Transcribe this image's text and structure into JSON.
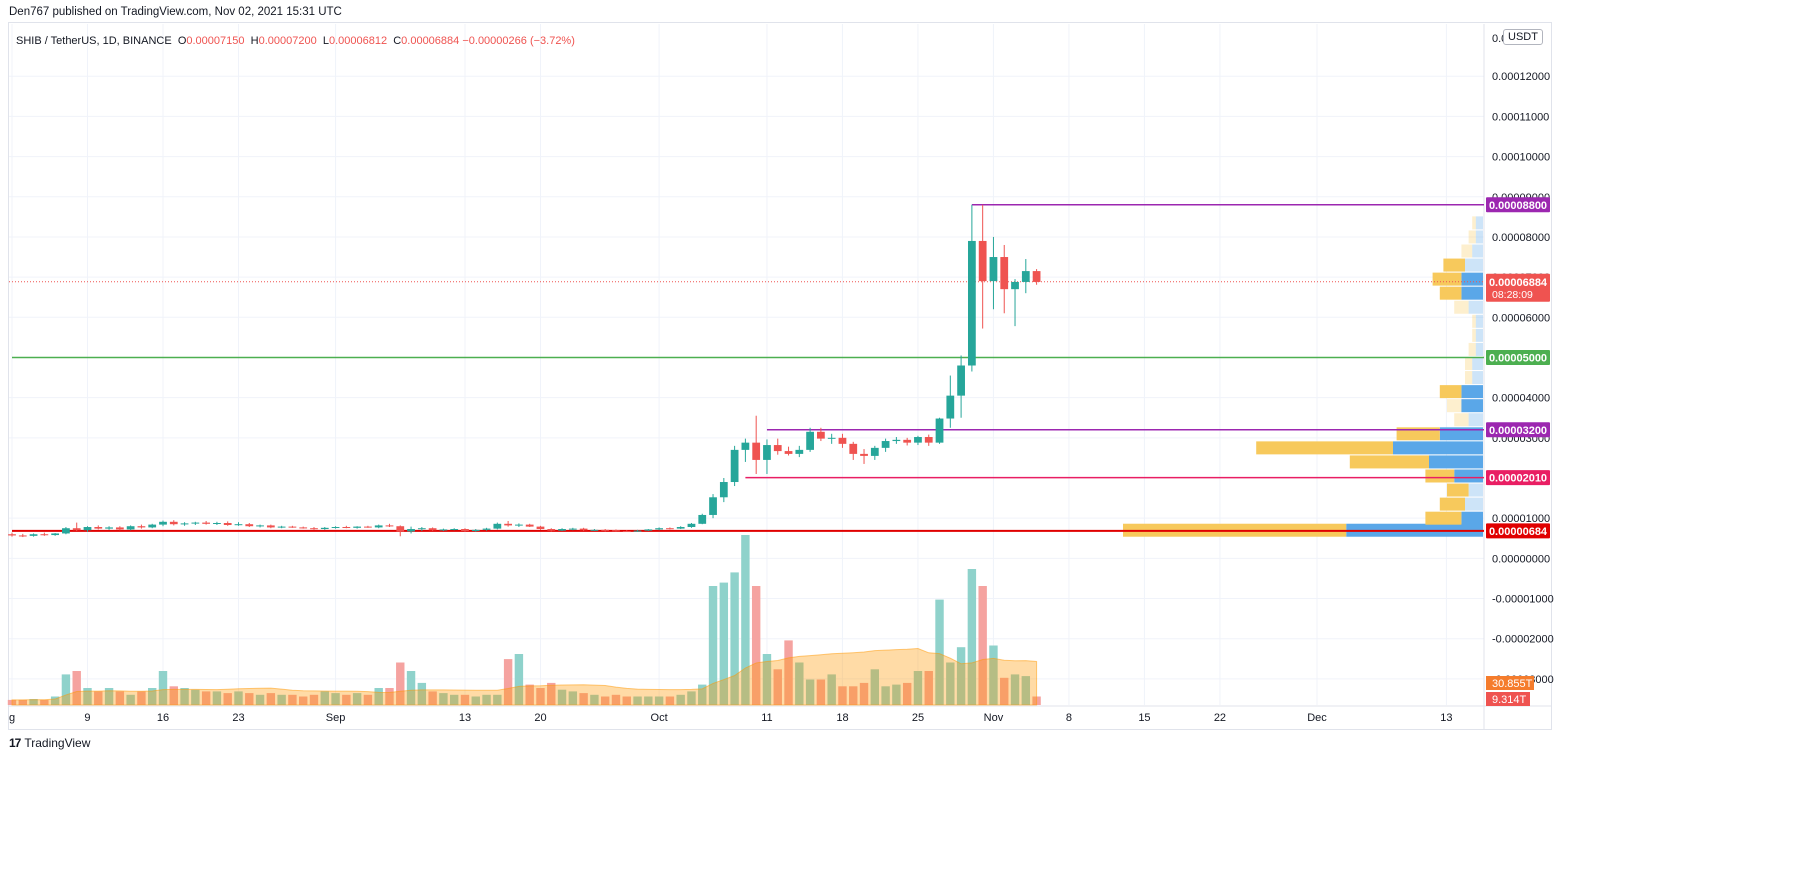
{
  "publish_line": "Den767 published on TradingView.com, Nov 02, 2021 15:31 UTC",
  "legend": {
    "symbol": "SHIB / TetherUS, 1D, BINANCE",
    "open_label": "O",
    "open": "0.00007150",
    "high_label": "H",
    "high": "0.00007200",
    "low_label": "L",
    "low": "0.00006812",
    "close_label": "C",
    "close": "0.00006884",
    "change": "−0.00000266 (−3.72%)"
  },
  "currency_badge": "USDT",
  "footer": {
    "logo": "17",
    "brand": "TradingView"
  },
  "colors": {
    "up": "#26a69a",
    "down": "#ef5350",
    "up_vol": "#8fd2cb",
    "down_vol": "#f5a3a0",
    "resistance": "#9c27b0",
    "support_green": "#4caf50",
    "support_red": "#e91e63",
    "current_red": "#e00000",
    "vp_yellow": "#f7c95c",
    "vp_blue": "#5aa7e8"
  },
  "chart_data": {
    "type": "candlestick",
    "price_axis": {
      "ylim": [
        -3.65e-05,
        0.000133
      ],
      "ticks": [
        "0.00012000",
        "0.00011000",
        "0.00010000",
        "0.00009000",
        "0.00008000",
        "0.00007000",
        "0.00006000",
        "0.00004000",
        "0.00003000",
        "0.00001000",
        "0.00000000",
        "-0.00001000",
        "-0.00002000",
        "-0.00003000"
      ],
      "tick_values": [
        0.00012,
        0.00011,
        0.0001,
        9e-05,
        8e-05,
        7e-05,
        6e-05,
        4e-05,
        3e-05,
        1e-05,
        0,
        -1e-05,
        -2e-05,
        -3e-05
      ],
      "top_partial_label": "0.0"
    },
    "time_axis": {
      "labels": [
        "g",
        "9",
        "16",
        "23",
        "Sep",
        "13",
        "20",
        "Oct",
        "11",
        "18",
        "25",
        "Nov",
        "8",
        "15",
        "22",
        "Dec",
        "13"
      ],
      "label_dates": [
        "2021-08-02",
        "2021-08-09",
        "2021-08-16",
        "2021-08-23",
        "2021-09-01",
        "2021-09-13",
        "2021-09-20",
        "2021-10-01",
        "2021-10-11",
        "2021-10-18",
        "2021-10-25",
        "2021-11-01",
        "2021-11-08",
        "2021-11-15",
        "2021-11-22",
        "2021-12-01",
        "2021-12-13"
      ],
      "xlim": [
        "2021-08-02",
        "2021-12-15"
      ]
    },
    "candles": [
      {
        "date": "2021-08-02",
        "o": 6e-06,
        "h": 6.4e-06,
        "l": 5.4e-06,
        "c": 5.7e-06
      },
      {
        "date": "2021-08-03",
        "o": 5.7e-06,
        "h": 6.1e-06,
        "l": 5.3e-06,
        "c": 5.6e-06
      },
      {
        "date": "2021-08-04",
        "o": 5.6e-06,
        "h": 6.2e-06,
        "l": 5.4e-06,
        "c": 6e-06
      },
      {
        "date": "2021-08-05",
        "o": 6e-06,
        "h": 6.4e-06,
        "l": 5.6e-06,
        "c": 5.8e-06
      },
      {
        "date": "2021-08-06",
        "o": 5.8e-06,
        "h": 6.3e-06,
        "l": 5.6e-06,
        "c": 6.2e-06
      },
      {
        "date": "2021-08-07",
        "o": 6.2e-06,
        "h": 7.8e-06,
        "l": 6e-06,
        "c": 7.5e-06
      },
      {
        "date": "2021-08-08",
        "o": 7.5e-06,
        "h": 8.9e-06,
        "l": 6.8e-06,
        "c": 7e-06
      },
      {
        "date": "2021-08-09",
        "o": 7e-06,
        "h": 8e-06,
        "l": 6.6e-06,
        "c": 7.8e-06
      },
      {
        "date": "2021-08-10",
        "o": 7.8e-06,
        "h": 8.2e-06,
        "l": 7.2e-06,
        "c": 7.4e-06
      },
      {
        "date": "2021-08-11",
        "o": 7.4e-06,
        "h": 8e-06,
        "l": 7.1e-06,
        "c": 7.7e-06
      },
      {
        "date": "2021-08-12",
        "o": 7.7e-06,
        "h": 8e-06,
        "l": 7e-06,
        "c": 7.2e-06
      },
      {
        "date": "2021-08-13",
        "o": 7.2e-06,
        "h": 8.2e-06,
        "l": 7e-06,
        "c": 8e-06
      },
      {
        "date": "2021-08-14",
        "o": 8e-06,
        "h": 8.4e-06,
        "l": 7.4e-06,
        "c": 7.7e-06
      },
      {
        "date": "2021-08-15",
        "o": 7.7e-06,
        "h": 8.6e-06,
        "l": 7.5e-06,
        "c": 8.4e-06
      },
      {
        "date": "2021-08-16",
        "o": 8.4e-06,
        "h": 9.4e-06,
        "l": 8e-06,
        "c": 9.1e-06
      },
      {
        "date": "2021-08-17",
        "o": 9.1e-06,
        "h": 9.5e-06,
        "l": 8.2e-06,
        "c": 8.5e-06
      },
      {
        "date": "2021-08-18",
        "o": 8.5e-06,
        "h": 9e-06,
        "l": 8.1e-06,
        "c": 8.7e-06
      },
      {
        "date": "2021-08-19",
        "o": 8.7e-06,
        "h": 9.1e-06,
        "l": 8.3e-06,
        "c": 8.9e-06
      },
      {
        "date": "2021-08-20",
        "o": 8.9e-06,
        "h": 9.3e-06,
        "l": 8.4e-06,
        "c": 8.6e-06
      },
      {
        "date": "2021-08-21",
        "o": 8.6e-06,
        "h": 9.1e-06,
        "l": 8.3e-06,
        "c": 8.8e-06
      },
      {
        "date": "2021-08-22",
        "o": 8.8e-06,
        "h": 9.2e-06,
        "l": 8.1e-06,
        "c": 8.3e-06
      },
      {
        "date": "2021-08-23",
        "o": 8.3e-06,
        "h": 9e-06,
        "l": 8.1e-06,
        "c": 8.5e-06
      },
      {
        "date": "2021-08-24",
        "o": 8.5e-06,
        "h": 8.8e-06,
        "l": 7.8e-06,
        "c": 8e-06
      },
      {
        "date": "2021-08-25",
        "o": 8e-06,
        "h": 8.4e-06,
        "l": 7.7e-06,
        "c": 8.2e-06
      },
      {
        "date": "2021-08-26",
        "o": 8.2e-06,
        "h": 8.4e-06,
        "l": 7.5e-06,
        "c": 7.7e-06
      },
      {
        "date": "2021-08-27",
        "o": 7.7e-06,
        "h": 8.1e-06,
        "l": 7.5e-06,
        "c": 7.9e-06
      },
      {
        "date": "2021-08-28",
        "o": 7.9e-06,
        "h": 8.1e-06,
        "l": 7.6e-06,
        "c": 7.7e-06
      },
      {
        "date": "2021-08-29",
        "o": 7.7e-06,
        "h": 7.9e-06,
        "l": 7.4e-06,
        "c": 7.5e-06
      },
      {
        "date": "2021-08-30",
        "o": 7.5e-06,
        "h": 7.8e-06,
        "l": 7.1e-06,
        "c": 7.3e-06
      },
      {
        "date": "2021-08-31",
        "o": 7.3e-06,
        "h": 7.8e-06,
        "l": 7.1e-06,
        "c": 7.6e-06
      },
      {
        "date": "2021-09-01",
        "o": 7.6e-06,
        "h": 8e-06,
        "l": 7.4e-06,
        "c": 7.8e-06
      },
      {
        "date": "2021-09-02",
        "o": 7.8e-06,
        "h": 8.1e-06,
        "l": 7.5e-06,
        "c": 7.6e-06
      },
      {
        "date": "2021-09-03",
        "o": 7.6e-06,
        "h": 8e-06,
        "l": 7.4e-06,
        "c": 7.9e-06
      },
      {
        "date": "2021-09-04",
        "o": 7.9e-06,
        "h": 8.1e-06,
        "l": 7.6e-06,
        "c": 7.7e-06
      },
      {
        "date": "2021-09-05",
        "o": 7.7e-06,
        "h": 8.4e-06,
        "l": 7.5e-06,
        "c": 8.2e-06
      },
      {
        "date": "2021-09-06",
        "o": 8.2e-06,
        "h": 8.6e-06,
        "l": 7.8e-06,
        "c": 8e-06
      },
      {
        "date": "2021-09-07",
        "o": 8e-06,
        "h": 8.2e-06,
        "l": 5.5e-06,
        "c": 6.7e-06
      },
      {
        "date": "2021-09-08",
        "o": 6.7e-06,
        "h": 7.9e-06,
        "l": 6.2e-06,
        "c": 7.3e-06
      },
      {
        "date": "2021-09-09",
        "o": 7.3e-06,
        "h": 7.8e-06,
        "l": 6.8e-06,
        "c": 7.5e-06
      },
      {
        "date": "2021-09-10",
        "o": 7.5e-06,
        "h": 7.7e-06,
        "l": 6.8e-06,
        "c": 7e-06
      },
      {
        "date": "2021-09-11",
        "o": 7e-06,
        "h": 7.4e-06,
        "l": 6.8e-06,
        "c": 7.2e-06
      },
      {
        "date": "2021-09-12",
        "o": 7.2e-06,
        "h": 7.5e-06,
        "l": 7e-06,
        "c": 7.3e-06
      },
      {
        "date": "2021-09-13",
        "o": 7.3e-06,
        "h": 7.5e-06,
        "l": 6.6e-06,
        "c": 6.8e-06
      },
      {
        "date": "2021-09-14",
        "o": 6.8e-06,
        "h": 7.3e-06,
        "l": 6.6e-06,
        "c": 7.1e-06
      },
      {
        "date": "2021-09-15",
        "o": 7.1e-06,
        "h": 7.6e-06,
        "l": 6.9e-06,
        "c": 7.4e-06
      },
      {
        "date": "2021-09-16",
        "o": 7.4e-06,
        "h": 8.9e-06,
        "l": 7.2e-06,
        "c": 8.6e-06
      },
      {
        "date": "2021-09-17",
        "o": 8.6e-06,
        "h": 9.3e-06,
        "l": 7.9e-06,
        "c": 8.2e-06
      },
      {
        "date": "2021-09-18",
        "o": 8.2e-06,
        "h": 8.7e-06,
        "l": 7.8e-06,
        "c": 8.4e-06
      },
      {
        "date": "2021-09-19",
        "o": 8.4e-06,
        "h": 8.6e-06,
        "l": 7.8e-06,
        "c": 7.9e-06
      },
      {
        "date": "2021-09-20",
        "o": 7.9e-06,
        "h": 8.1e-06,
        "l": 7.1e-06,
        "c": 7.3e-06
      },
      {
        "date": "2021-09-21",
        "o": 7.3e-06,
        "h": 7.5e-06,
        "l": 6.7e-06,
        "c": 6.9e-06
      },
      {
        "date": "2021-09-22",
        "o": 6.9e-06,
        "h": 7.5e-06,
        "l": 6.8e-06,
        "c": 7.3e-06
      },
      {
        "date": "2021-09-23",
        "o": 7.3e-06,
        "h": 7.6e-06,
        "l": 7e-06,
        "c": 7.4e-06
      },
      {
        "date": "2021-09-24",
        "o": 7.4e-06,
        "h": 7.6e-06,
        "l": 6.8e-06,
        "c": 7e-06
      },
      {
        "date": "2021-09-25",
        "o": 7e-06,
        "h": 7.3e-06,
        "l": 6.8e-06,
        "c": 7.1e-06
      },
      {
        "date": "2021-09-26",
        "o": 7.1e-06,
        "h": 7.3e-06,
        "l": 6.7e-06,
        "c": 7e-06
      },
      {
        "date": "2021-09-27",
        "o": 7e-06,
        "h": 7.2e-06,
        "l": 6.7e-06,
        "c": 6.8e-06
      },
      {
        "date": "2021-09-28",
        "o": 6.8e-06,
        "h": 7e-06,
        "l": 6.6e-06,
        "c": 6.7e-06
      },
      {
        "date": "2021-09-29",
        "o": 6.7e-06,
        "h": 7.1e-06,
        "l": 6.6e-06,
        "c": 6.9e-06
      },
      {
        "date": "2021-09-30",
        "o": 6.9e-06,
        "h": 7.3e-06,
        "l": 6.8e-06,
        "c": 7.2e-06
      },
      {
        "date": "2021-10-01",
        "o": 7.2e-06,
        "h": 7.7e-06,
        "l": 7e-06,
        "c": 7.5e-06
      },
      {
        "date": "2021-10-02",
        "o": 7.5e-06,
        "h": 7.7e-06,
        "l": 7.2e-06,
        "c": 7.4e-06
      },
      {
        "date": "2021-10-03",
        "o": 7.4e-06,
        "h": 8e-06,
        "l": 7.3e-06,
        "c": 7.8e-06
      },
      {
        "date": "2021-10-04",
        "o": 7.8e-06,
        "h": 8.8e-06,
        "l": 7.6e-06,
        "c": 8.6e-06
      },
      {
        "date": "2021-10-05",
        "o": 8.6e-06,
        "h": 1.11e-05,
        "l": 8.5e-06,
        "c": 1.08e-05
      },
      {
        "date": "2021-10-06",
        "o": 1.08e-05,
        "h": 1.6e-05,
        "l": 1e-05,
        "c": 1.52e-05
      },
      {
        "date": "2021-10-07",
        "o": 1.52e-05,
        "h": 2e-05,
        "l": 1.4e-05,
        "c": 1.9e-05
      },
      {
        "date": "2021-10-08",
        "o": 1.9e-05,
        "h": 2.8e-05,
        "l": 1.8e-05,
        "c": 2.7e-05
      },
      {
        "date": "2021-10-09",
        "o": 2.7e-05,
        "h": 2.98e-05,
        "l": 2.4e-05,
        "c": 2.88e-05
      },
      {
        "date": "2021-10-10",
        "o": 2.88e-05,
        "h": 3.55e-05,
        "l": 2.1e-05,
        "c": 2.45e-05
      },
      {
        "date": "2021-10-11",
        "o": 2.45e-05,
        "h": 2.96e-05,
        "l": 2.1e-05,
        "c": 2.82e-05
      },
      {
        "date": "2021-10-12",
        "o": 2.82e-05,
        "h": 2.98e-05,
        "l": 2.58e-05,
        "c": 2.67e-05
      },
      {
        "date": "2021-10-13",
        "o": 2.67e-05,
        "h": 2.78e-05,
        "l": 2.56e-05,
        "c": 2.6e-05
      },
      {
        "date": "2021-10-14",
        "o": 2.6e-05,
        "h": 2.8e-05,
        "l": 2.52e-05,
        "c": 2.7e-05
      },
      {
        "date": "2021-10-15",
        "o": 2.7e-05,
        "h": 3.25e-05,
        "l": 2.65e-05,
        "c": 3.15e-05
      },
      {
        "date": "2021-10-16",
        "o": 3.15e-05,
        "h": 3.25e-05,
        "l": 2.92e-05,
        "c": 2.98e-05
      },
      {
        "date": "2021-10-17",
        "o": 2.98e-05,
        "h": 3.1e-05,
        "l": 2.85e-05,
        "c": 3e-05
      },
      {
        "date": "2021-10-18",
        "o": 3e-05,
        "h": 3.1e-05,
        "l": 2.75e-05,
        "c": 2.85e-05
      },
      {
        "date": "2021-10-19",
        "o": 2.85e-05,
        "h": 2.9e-05,
        "l": 2.45e-05,
        "c": 2.6e-05
      },
      {
        "date": "2021-10-20",
        "o": 2.6e-05,
        "h": 2.72e-05,
        "l": 2.35e-05,
        "c": 2.55e-05
      },
      {
        "date": "2021-10-21",
        "o": 2.55e-05,
        "h": 2.8e-05,
        "l": 2.45e-05,
        "c": 2.75e-05
      },
      {
        "date": "2021-10-22",
        "o": 2.75e-05,
        "h": 2.98e-05,
        "l": 2.65e-05,
        "c": 2.92e-05
      },
      {
        "date": "2021-10-23",
        "o": 2.92e-05,
        "h": 3.02e-05,
        "l": 2.85e-05,
        "c": 2.95e-05
      },
      {
        "date": "2021-10-24",
        "o": 2.95e-05,
        "h": 3e-05,
        "l": 2.81e-05,
        "c": 2.88e-05
      },
      {
        "date": "2021-10-25",
        "o": 2.88e-05,
        "h": 3.05e-05,
        "l": 2.82e-05,
        "c": 3.02e-05
      },
      {
        "date": "2021-10-26",
        "o": 3.02e-05,
        "h": 3.08e-05,
        "l": 2.8e-05,
        "c": 2.88e-05
      },
      {
        "date": "2021-10-27",
        "o": 2.88e-05,
        "h": 3.5e-05,
        "l": 2.85e-05,
        "c": 3.48e-05
      },
      {
        "date": "2021-10-28",
        "o": 3.48e-05,
        "h": 4.55e-05,
        "l": 3.25e-05,
        "c": 4.05e-05
      },
      {
        "date": "2021-10-29",
        "o": 4.05e-05,
        "h": 5.05e-05,
        "l": 3.5e-05,
        "c": 4.8e-05
      },
      {
        "date": "2021-10-30",
        "o": 4.8e-05,
        "h": 8.8e-05,
        "l": 4.65e-05,
        "c": 7.9e-05
      },
      {
        "date": "2021-10-31",
        "o": 7.9e-05,
        "h": 8.8e-05,
        "l": 5.72e-05,
        "c": 6.9e-05
      },
      {
        "date": "2021-11-01",
        "o": 6.9e-05,
        "h": 8e-05,
        "l": 6.2e-05,
        "c": 7.5e-05
      },
      {
        "date": "2021-11-02",
        "o": 7.5e-05,
        "h": 7.8e-05,
        "l": 6.1e-05,
        "c": 6.7e-05
      },
      {
        "date": "2021-11-03",
        "o": 6.7e-05,
        "h": 6.95e-05,
        "l": 5.78e-05,
        "c": 6.88e-05
      },
      {
        "date": "2021-11-04",
        "o": 6.88e-05,
        "h": 7.45e-05,
        "l": 6.6e-05,
        "c": 7.15e-05
      },
      {
        "date": "2021-11-05",
        "o": 7.15e-05,
        "h": 7.2e-05,
        "l": 6.81e-05,
        "c": 6.88e-05
      }
    ],
    "volume_relative": [
      0.03,
      0.03,
      0.035,
      0.03,
      0.05,
      0.18,
      0.2,
      0.1,
      0.08,
      0.1,
      0.08,
      0.06,
      0.08,
      0.1,
      0.2,
      0.11,
      0.1,
      0.09,
      0.08,
      0.08,
      0.07,
      0.08,
      0.07,
      0.06,
      0.07,
      0.06,
      0.06,
      0.05,
      0.06,
      0.08,
      0.07,
      0.06,
      0.07,
      0.06,
      0.1,
      0.1,
      0.25,
      0.2,
      0.13,
      0.08,
      0.07,
      0.06,
      0.06,
      0.05,
      0.06,
      0.06,
      0.27,
      0.3,
      0.12,
      0.1,
      0.13,
      0.09,
      0.08,
      0.07,
      0.06,
      0.05,
      0.06,
      0.05,
      0.05,
      0.05,
      0.05,
      0.05,
      0.06,
      0.08,
      0.12,
      0.7,
      0.72,
      0.78,
      1.0,
      0.7,
      0.3,
      0.21,
      0.38,
      0.25,
      0.15,
      0.15,
      0.18,
      0.11,
      0.11,
      0.13,
      0.21,
      0.11,
      0.12,
      0.13,
      0.2,
      0.2,
      0.62,
      0.25,
      0.34,
      0.8,
      0.7,
      0.35,
      0.16,
      0.18,
      0.17,
      0.05
    ],
    "volume_labels": {
      "total": "30.855T",
      "last": "9.314T"
    },
    "horizontal_levels": [
      {
        "price": 8.8e-05,
        "label": "0.00008800",
        "color": "#9c27b0",
        "from": "2021-10-30"
      },
      {
        "price": 5e-05,
        "label": "0.00005000",
        "color": "#4caf50",
        "from": "2021-08-02"
      },
      {
        "price": 3.2e-05,
        "label": "0.00003200",
        "color": "#9c27b0",
        "from": "2021-10-11"
      },
      {
        "price": 2.01e-05,
        "label": "0.00002010",
        "color": "#e91e63",
        "from": "2021-10-09"
      },
      {
        "price": 6.84e-06,
        "label": "0.00000684",
        "color": "#e00000",
        "from": "2021-08-02"
      }
    ],
    "last_price": {
      "label": "0.00006884",
      "countdown": "08:28:09",
      "color": "#ef5350"
    },
    "volume_profile": [
      {
        "price": 7e-06,
        "yellow": 0.62,
        "blue": 0.38
      },
      {
        "price": 1e-05,
        "yellow": 0.1,
        "blue": 0.06
      },
      {
        "price": 1.35e-05,
        "yellow": 0.07,
        "blue": 0.05
      },
      {
        "price": 1.7e-05,
        "yellow": 0.06,
        "blue": 0.04
      },
      {
        "price": 2.05e-05,
        "yellow": 0.08,
        "blue": 0.08
      },
      {
        "price": 2.4e-05,
        "yellow": 0.22,
        "blue": 0.15
      },
      {
        "price": 2.75e-05,
        "yellow": 0.38,
        "blue": 0.25
      },
      {
        "price": 3.1e-05,
        "yellow": 0.12,
        "blue": 0.12
      },
      {
        "price": 3.45e-05,
        "yellow": 0.04,
        "blue": 0.04
      },
      {
        "price": 3.8e-05,
        "yellow": 0.04,
        "blue": 0.06
      },
      {
        "price": 4.15e-05,
        "yellow": 0.06,
        "blue": 0.06
      },
      {
        "price": 4.5e-05,
        "yellow": 0.02,
        "blue": 0.03
      },
      {
        "price": 4.85e-05,
        "yellow": 0.02,
        "blue": 0.03
      },
      {
        "price": 5.2e-05,
        "yellow": 0.02,
        "blue": 0.02
      },
      {
        "price": 5.55e-05,
        "yellow": 0.01,
        "blue": 0.02
      },
      {
        "price": 5.9e-05,
        "yellow": 0.01,
        "blue": 0.02
      },
      {
        "price": 6.25e-05,
        "yellow": 0.04,
        "blue": 0.04
      },
      {
        "price": 6.6e-05,
        "yellow": 0.06,
        "blue": 0.06
      },
      {
        "price": 6.95e-05,
        "yellow": 0.08,
        "blue": 0.06
      },
      {
        "price": 7.3e-05,
        "yellow": 0.06,
        "blue": 0.05
      },
      {
        "price": 7.65e-05,
        "yellow": 0.03,
        "blue": 0.03
      },
      {
        "price": 8e-05,
        "yellow": 0.02,
        "blue": 0.02
      },
      {
        "price": 8.35e-05,
        "yellow": 0.01,
        "blue": 0.02
      }
    ]
  }
}
